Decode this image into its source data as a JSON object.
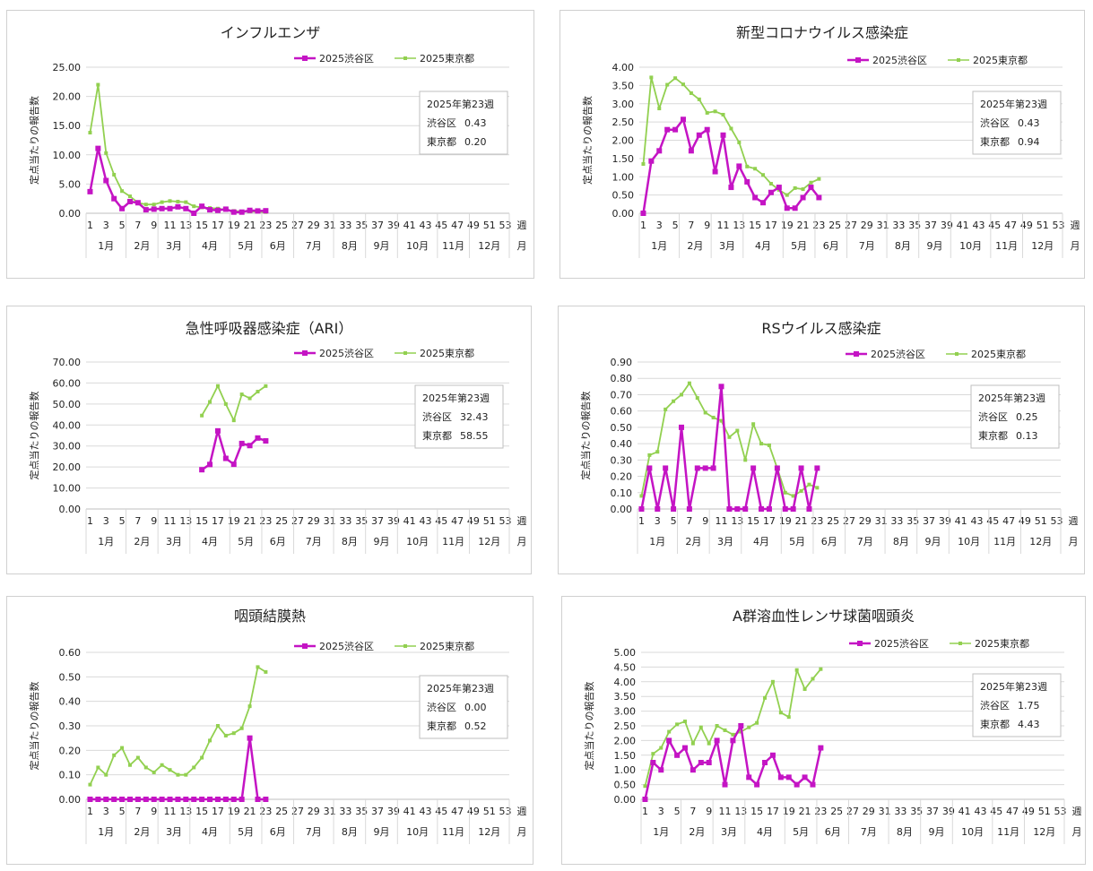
{
  "x_ticks": [
    "1",
    "3",
    "5",
    "7",
    "9",
    "11",
    "13",
    "15",
    "17",
    "19",
    "21",
    "23",
    "25",
    "27",
    "29",
    "31",
    "33",
    "35",
    "37",
    "39",
    "41",
    "43",
    "45",
    "47",
    "49",
    "51",
    "53"
  ],
  "week_unit": "週",
  "month_unit": "月",
  "months": [
    "1月",
    "2月",
    "3月",
    "4月",
    "5月",
    "6月",
    "7月",
    "8月",
    "9月",
    "10月",
    "11月",
    "12月"
  ],
  "ylabel": "定点当たりの報告数",
  "legend": {
    "shibuya": "2025渋谷区",
    "tokyo": "2025東京都"
  },
  "colors": {
    "shibuya": "#c414c4",
    "tokyo": "#92d050"
  },
  "chart_data": [
    {
      "type": "line",
      "title": "インフルエンザ",
      "ylim": [
        0,
        25
      ],
      "yticks": [
        "0.00",
        "5.00",
        "10.00",
        "15.00",
        "20.00",
        "25.00"
      ],
      "info": {
        "header": "2025年第23週",
        "shibuya_label": "渋谷区",
        "shibuya_value": "0.43",
        "tokyo_label": "東京都",
        "tokyo_value": "0.20"
      },
      "series": [
        {
          "name": "2025渋谷区",
          "x": [
            1,
            2,
            3,
            4,
            5,
            6,
            7,
            8,
            9,
            10,
            11,
            12,
            13,
            14,
            15,
            16,
            17,
            18,
            19,
            20,
            21,
            22,
            23
          ],
          "values": [
            3.7,
            11.1,
            5.6,
            2.5,
            0.8,
            2.0,
            1.8,
            0.6,
            0.7,
            0.8,
            0.8,
            1.1,
            0.8,
            0.0,
            1.2,
            0.6,
            0.5,
            0.7,
            0.2,
            0.2,
            0.5,
            0.4,
            0.43
          ]
        },
        {
          "name": "2025東京都",
          "x": [
            1,
            2,
            3,
            4,
            5,
            6,
            7,
            8,
            9,
            10,
            11,
            12,
            13,
            14,
            15,
            16,
            17,
            18,
            19,
            20,
            21,
            22,
            23
          ],
          "values": [
            13.8,
            22.0,
            10.3,
            6.6,
            3.8,
            2.9,
            1.8,
            1.5,
            1.5,
            1.9,
            2.1,
            2.0,
            1.9,
            1.2,
            1.0,
            0.9,
            0.8,
            0.6,
            0.4,
            0.3,
            0.3,
            0.25,
            0.2
          ]
        }
      ]
    },
    {
      "type": "line",
      "title": "新型コロナウイルス感染症",
      "ylim": [
        0,
        4
      ],
      "yticks": [
        "0.00",
        "0.50",
        "1.00",
        "1.50",
        "2.00",
        "2.50",
        "3.00",
        "3.50",
        "4.00"
      ],
      "info": {
        "header": "2025年第23週",
        "shibuya_label": "渋谷区",
        "shibuya_value": "0.43",
        "tokyo_label": "東京都",
        "tokyo_value": "0.94"
      },
      "series": [
        {
          "name": "2025渋谷区",
          "x": [
            1,
            2,
            3,
            4,
            5,
            6,
            7,
            8,
            9,
            10,
            11,
            12,
            13,
            14,
            15,
            16,
            17,
            18,
            19,
            20,
            21,
            22,
            23
          ],
          "values": [
            0.0,
            1.43,
            1.71,
            2.29,
            2.29,
            2.57,
            1.71,
            2.14,
            2.29,
            1.14,
            2.14,
            0.71,
            1.29,
            0.86,
            0.43,
            0.29,
            0.57,
            0.71,
            0.14,
            0.14,
            0.43,
            0.71,
            0.43
          ]
        },
        {
          "name": "2025東京都",
          "x": [
            1,
            2,
            3,
            4,
            5,
            6,
            7,
            8,
            9,
            10,
            11,
            12,
            13,
            14,
            15,
            16,
            17,
            18,
            19,
            20,
            21,
            22,
            23
          ],
          "values": [
            1.35,
            3.72,
            2.87,
            3.52,
            3.7,
            3.53,
            3.29,
            3.12,
            2.75,
            2.79,
            2.7,
            2.32,
            1.94,
            1.28,
            1.22,
            1.05,
            0.81,
            0.64,
            0.5,
            0.69,
            0.66,
            0.84,
            0.94
          ]
        }
      ]
    },
    {
      "type": "line",
      "title": "急性呼吸器感染症（ARI）",
      "ylim": [
        0,
        70
      ],
      "yticks": [
        "0.00",
        "10.00",
        "20.00",
        "30.00",
        "40.00",
        "50.00",
        "60.00",
        "70.00"
      ],
      "info": {
        "header": "2025年第23週",
        "shibuya_label": "渋谷区",
        "shibuya_value": "32.43",
        "tokyo_label": "東京都",
        "tokyo_value": "58.55"
      },
      "series": [
        {
          "name": "2025渋谷区",
          "x": [
            15,
            16,
            17,
            18,
            19,
            20,
            21,
            22,
            23
          ],
          "values": [
            18.7,
            21.2,
            37.2,
            24.1,
            21.3,
            31.2,
            30.2,
            33.8,
            32.43
          ]
        },
        {
          "name": "2025東京都",
          "x": [
            15,
            16,
            17,
            18,
            19,
            20,
            21,
            22,
            23
          ],
          "values": [
            44.5,
            51.0,
            58.6,
            50.0,
            42.2,
            54.6,
            52.7,
            55.9,
            58.55
          ]
        }
      ]
    },
    {
      "type": "line",
      "title": "RSウイルス感染症",
      "ylim": [
        0,
        0.9
      ],
      "yticks": [
        "0.00",
        "0.10",
        "0.20",
        "0.30",
        "0.40",
        "0.50",
        "0.60",
        "0.70",
        "0.80",
        "0.90"
      ],
      "info": {
        "header": "2025年第23週",
        "shibuya_label": "渋谷区",
        "shibuya_value": "0.25",
        "tokyo_label": "東京都",
        "tokyo_value": "0.13"
      },
      "series": [
        {
          "name": "2025渋谷区",
          "x": [
            1,
            2,
            3,
            4,
            5,
            6,
            7,
            8,
            9,
            10,
            11,
            12,
            13,
            14,
            15,
            16,
            17,
            18,
            19,
            20,
            21,
            22,
            23
          ],
          "values": [
            0.0,
            0.25,
            0.0,
            0.25,
            0.0,
            0.5,
            0.0,
            0.25,
            0.25,
            0.25,
            0.75,
            0.0,
            0.0,
            0.0,
            0.25,
            0.0,
            0.0,
            0.25,
            0.0,
            0.0,
            0.25,
            0.0,
            0.25
          ]
        },
        {
          "name": "2025東京都",
          "x": [
            1,
            2,
            3,
            4,
            5,
            6,
            7,
            8,
            9,
            10,
            11,
            12,
            13,
            14,
            15,
            16,
            17,
            18,
            19,
            20,
            21,
            22,
            23
          ],
          "values": [
            0.08,
            0.33,
            0.35,
            0.61,
            0.66,
            0.7,
            0.77,
            0.68,
            0.59,
            0.56,
            0.54,
            0.44,
            0.48,
            0.3,
            0.52,
            0.4,
            0.39,
            0.25,
            0.1,
            0.08,
            0.11,
            0.15,
            0.13
          ]
        }
      ]
    },
    {
      "type": "line",
      "title": "咽頭結膜熱",
      "ylim": [
        0,
        0.6
      ],
      "yticks": [
        "0.00",
        "0.10",
        "0.20",
        "0.30",
        "0.40",
        "0.50",
        "0.60"
      ],
      "info": {
        "header": "2025年第23週",
        "shibuya_label": "渋谷区",
        "shibuya_value": "0.00",
        "tokyo_label": "東京都",
        "tokyo_value": "0.52"
      },
      "series": [
        {
          "name": "2025渋谷区",
          "x": [
            1,
            2,
            3,
            4,
            5,
            6,
            7,
            8,
            9,
            10,
            11,
            12,
            13,
            14,
            15,
            16,
            17,
            18,
            19,
            20,
            21,
            22,
            23
          ],
          "values": [
            0,
            0,
            0,
            0,
            0,
            0,
            0,
            0,
            0,
            0,
            0,
            0,
            0,
            0,
            0,
            0,
            0,
            0,
            0,
            0,
            0.25,
            0,
            0
          ]
        },
        {
          "name": "2025東京都",
          "x": [
            1,
            2,
            3,
            4,
            5,
            6,
            7,
            8,
            9,
            10,
            11,
            12,
            13,
            14,
            15,
            16,
            17,
            18,
            19,
            20,
            21,
            22,
            23
          ],
          "values": [
            0.06,
            0.13,
            0.1,
            0.18,
            0.21,
            0.14,
            0.17,
            0.13,
            0.11,
            0.14,
            0.12,
            0.1,
            0.1,
            0.13,
            0.17,
            0.24,
            0.3,
            0.26,
            0.27,
            0.29,
            0.38,
            0.54,
            0.52
          ]
        }
      ]
    },
    {
      "type": "line",
      "title": "A群溶血性レンサ球菌咽頭炎",
      "ylim": [
        0,
        5
      ],
      "yticks": [
        "0.00",
        "0.50",
        "1.00",
        "1.50",
        "2.00",
        "2.50",
        "3.00",
        "3.50",
        "4.00",
        "4.50",
        "5.00"
      ],
      "info": {
        "header": "2025年第23週",
        "shibuya_label": "渋谷区",
        "shibuya_value": "1.75",
        "tokyo_label": "東京都",
        "tokyo_value": "4.43"
      },
      "series": [
        {
          "name": "2025渋谷区",
          "x": [
            1,
            2,
            3,
            4,
            5,
            6,
            7,
            8,
            9,
            10,
            11,
            12,
            13,
            14,
            15,
            16,
            17,
            18,
            19,
            20,
            21,
            22,
            23
          ],
          "values": [
            0.0,
            1.25,
            1.0,
            2.0,
            1.5,
            1.75,
            1.0,
            1.25,
            1.25,
            2.0,
            0.5,
            2.0,
            2.5,
            0.75,
            0.5,
            1.25,
            1.5,
            0.75,
            0.75,
            0.5,
            0.75,
            0.5,
            1.75
          ]
        },
        {
          "name": "2025東京都",
          "x": [
            1,
            2,
            3,
            4,
            5,
            6,
            7,
            8,
            9,
            10,
            11,
            12,
            13,
            14,
            15,
            16,
            17,
            18,
            19,
            20,
            21,
            22,
            23
          ],
          "values": [
            0.45,
            1.55,
            1.75,
            2.3,
            2.55,
            2.65,
            1.9,
            2.45,
            1.9,
            2.5,
            2.35,
            2.2,
            2.3,
            2.45,
            2.6,
            3.45,
            4.0,
            2.95,
            2.8,
            4.4,
            3.75,
            4.1,
            4.43
          ]
        }
      ]
    }
  ]
}
